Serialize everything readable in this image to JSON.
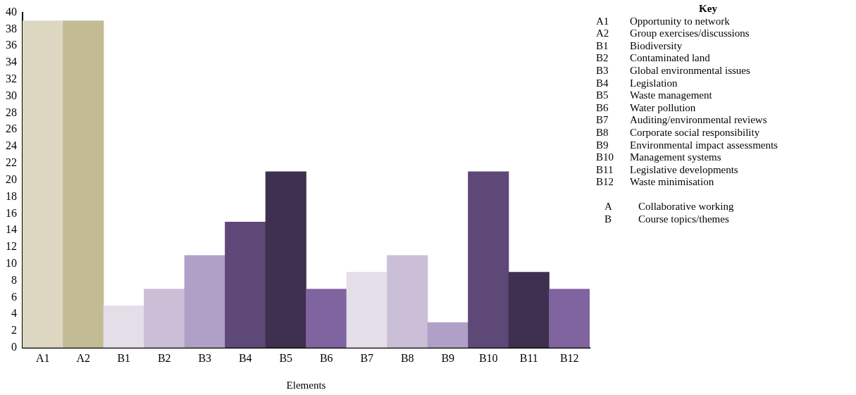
{
  "chart_data": {
    "type": "bar",
    "xlabel": "Elements",
    "categories": [
      "A1",
      "A2",
      "B1",
      "B2",
      "B3",
      "B4",
      "B5",
      "B6",
      "B7",
      "B8",
      "B9",
      "B10",
      "B11",
      "B12"
    ],
    "values": [
      39,
      39,
      5,
      7,
      11,
      15,
      21,
      7,
      9,
      11,
      3,
      21,
      9,
      7
    ],
    "colors": [
      "#ddd7c1",
      "#c3bb94",
      "#e4dee9",
      "#cbbed7",
      "#b09fc6",
      "#5e4878",
      "#3f3050",
      "#8064a0",
      "#e4dee9",
      "#cbbed7",
      "#b09fc6",
      "#5e4878",
      "#3f3050",
      "#8064a0"
    ],
    "ylim": [
      0,
      40
    ],
    "yticks": [
      0,
      2,
      4,
      6,
      8,
      10,
      12,
      14,
      16,
      18,
      20,
      22,
      24,
      26,
      28,
      30,
      32,
      34,
      36,
      38,
      40
    ],
    "grid": false,
    "legend": false,
    "legend_title": "Key",
    "annotations": [
      "A1\tOpportunity to network",
      "A2\tGroup exercises/discussions",
      "B1\tBiodiversity",
      "B2\tContaminated land",
      "B3\tGlobal environmental issues",
      "B4\tLegislation",
      "B5\tWaste management",
      "B6\tWater pollution",
      "B7\tAuditing/environmental reviews",
      "B8\tCorporate social responsibility",
      "B9\tEnvironmental impact assessments",
      "B10\tManagement systems",
      "B11\tLegislative developments",
      "B12\tWaste minimisation",
      "A\tCollaborative working",
      "B\tCourse topics/themes"
    ]
  }
}
